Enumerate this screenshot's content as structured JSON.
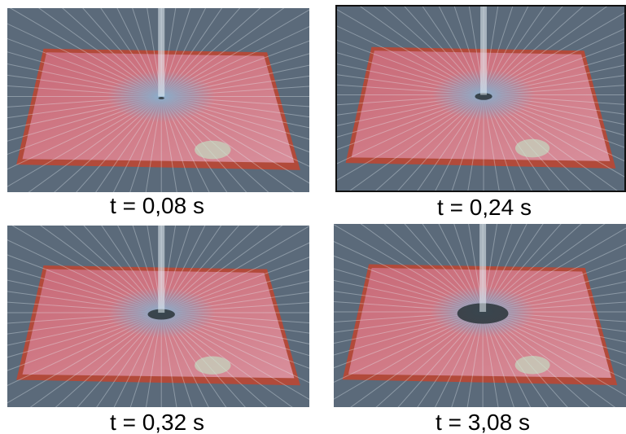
{
  "frames": [
    {
      "caption": "t = 0,08 s",
      "dry_spot": 0.04
    },
    {
      "caption": "t = 0,24 s",
      "dry_spot": 0.12
    },
    {
      "caption": "t = 0,32 s",
      "dry_spot": 0.18
    },
    {
      "caption": "t = 3,08 s",
      "dry_spot": 0.35
    }
  ],
  "colors": {
    "background_water": "#5b6a7a",
    "plate": "#d07a86",
    "plate_edge": "#b24a3a",
    "ring": "#7fa4c4",
    "spot": "#2a3438",
    "spray": "#e8f0f6"
  }
}
